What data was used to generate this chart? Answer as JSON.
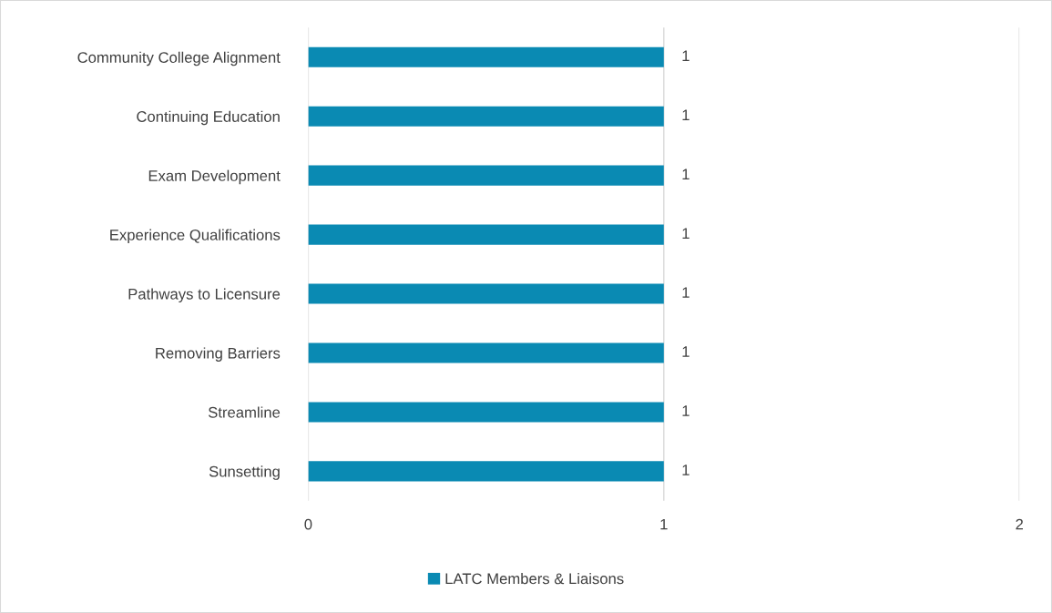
{
  "chart_data": {
    "type": "bar",
    "orientation": "horizontal",
    "categories": [
      "Community College Alignment",
      "Continuing Education",
      "Exam Development",
      "Experience Qualifications",
      "Pathways to Licensure",
      "Removing Barriers",
      "Streamline",
      "Sunsetting"
    ],
    "series": [
      {
        "name": "LATC Members & Liaisons",
        "color": "#0a8ab3",
        "values": [
          1,
          1,
          1,
          1,
          1,
          1,
          1,
          1
        ]
      }
    ],
    "xlim": [
      0,
      2
    ],
    "xticks": [
      0,
      1,
      2
    ],
    "grid": "x",
    "data_labels": true,
    "legend": "bottom"
  }
}
